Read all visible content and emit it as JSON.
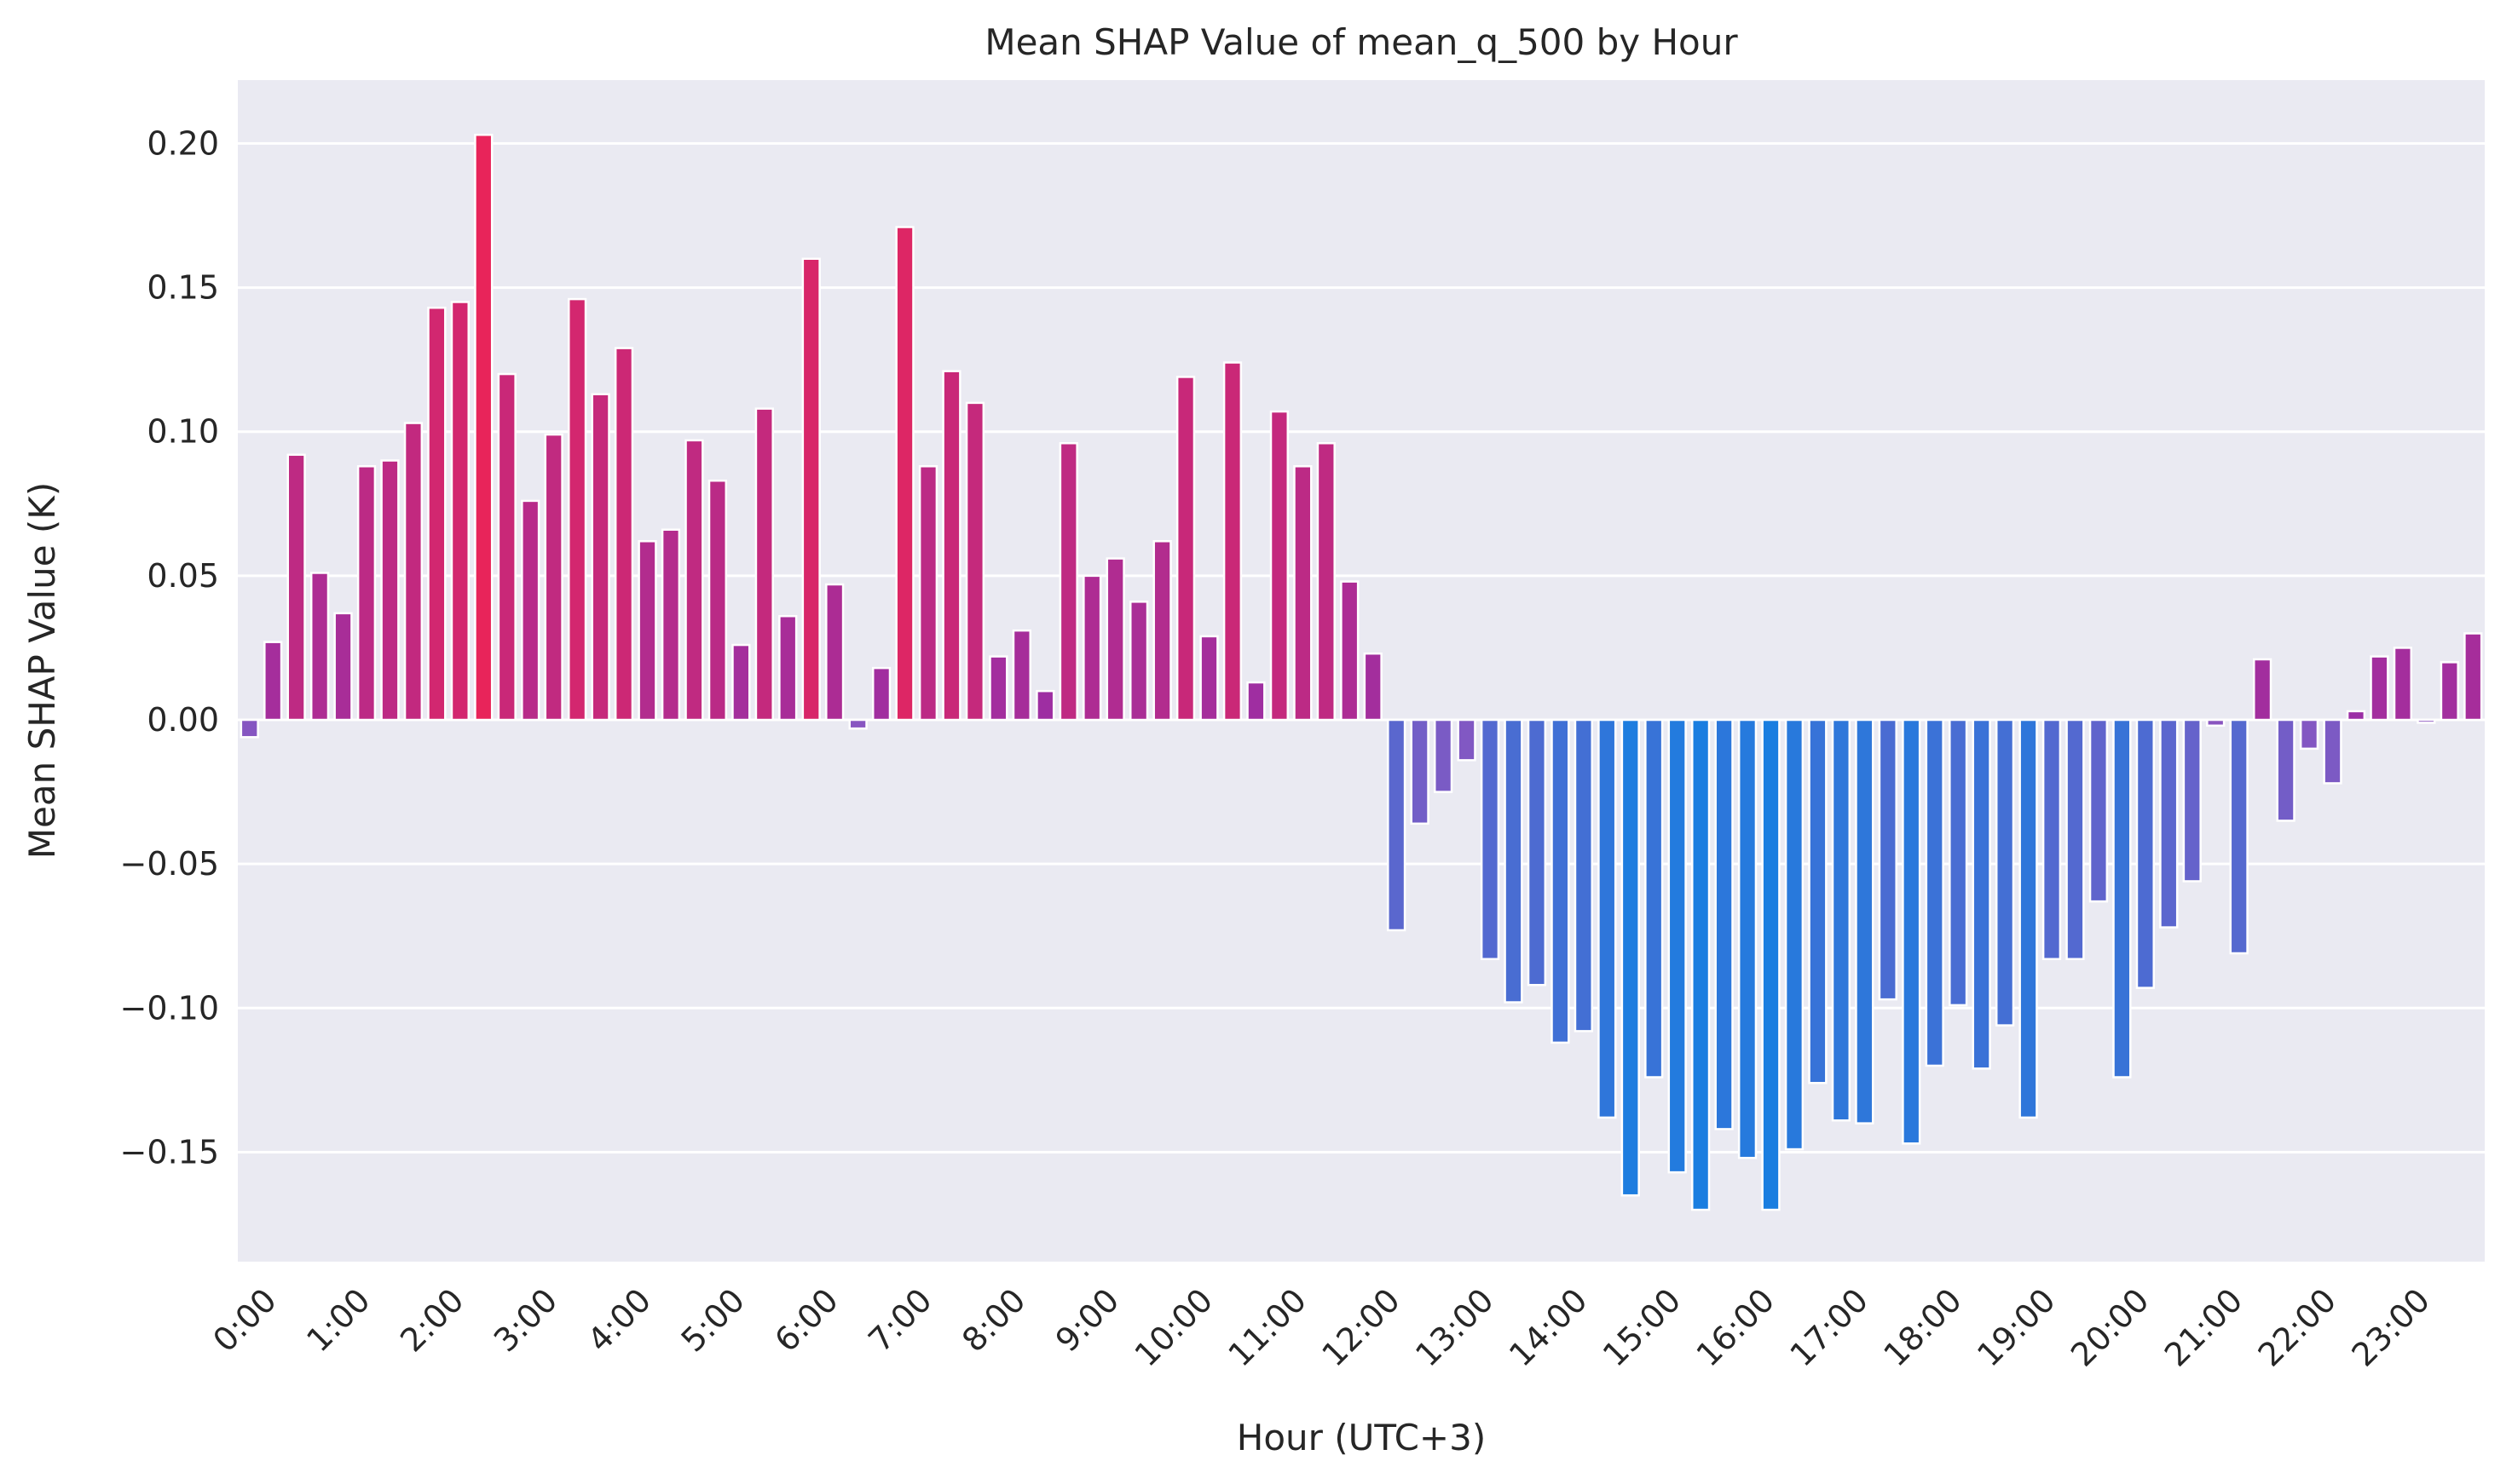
{
  "chart_data": {
    "type": "bar",
    "title": "Mean SHAP Value of mean_q_500 by Hour",
    "xlabel": "Hour (UTC+3)",
    "ylabel": "Mean SHAP Value (K)",
    "ylim": [
      -0.188,
      0.222
    ],
    "yticks": [
      0.2,
      0.15,
      0.1,
      0.05,
      0.0,
      -0.05,
      -0.1,
      -0.15
    ],
    "ytick_labels": [
      "0.20",
      "0.15",
      "0.10",
      "0.05",
      "0.00",
      "−0.05",
      "−0.10",
      "−0.15"
    ],
    "xtick_labels": [
      "0:00",
      "1:00",
      "2:00",
      "3:00",
      "4:00",
      "5:00",
      "6:00",
      "7:00",
      "8:00",
      "9:00",
      "10:00",
      "11:00",
      "12:00",
      "13:00",
      "14:00",
      "15:00",
      "16:00",
      "17:00",
      "18:00",
      "19:00",
      "20:00",
      "21:00",
      "22:00",
      "23:00"
    ],
    "bars_per_hour": 4,
    "grid": true,
    "colors": {
      "background": "#eaeaf2",
      "grid": "#ffffff",
      "positive_high": "#e8245a",
      "positive_low": "#9a2fa6",
      "negative_low": "#8a55c0",
      "negative_high": "#1a7ee0"
    },
    "values": [
      -0.006,
      0.027,
      0.092,
      0.051,
      0.037,
      0.088,
      0.09,
      0.103,
      0.143,
      0.145,
      0.203,
      0.12,
      0.076,
      0.099,
      0.146,
      0.113,
      0.129,
      0.062,
      0.066,
      0.097,
      0.083,
      0.026,
      0.108,
      0.036,
      0.16,
      0.047,
      -0.003,
      0.018,
      0.171,
      0.088,
      0.121,
      0.11,
      0.022,
      0.031,
      0.01,
      0.096,
      0.05,
      0.056,
      0.041,
      0.062,
      0.119,
      0.029,
      0.124,
      0.013,
      0.107,
      0.088,
      0.096,
      0.048,
      0.023,
      -0.073,
      -0.036,
      -0.025,
      -0.014,
      -0.083,
      -0.098,
      -0.092,
      -0.112,
      -0.108,
      -0.138,
      -0.165,
      -0.124,
      -0.157,
      -0.17,
      -0.142,
      -0.152,
      -0.17,
      -0.149,
      -0.126,
      -0.139,
      -0.14,
      -0.097,
      -0.147,
      -0.12,
      -0.099,
      -0.121,
      -0.106,
      -0.138,
      -0.083,
      -0.083,
      -0.063,
      -0.124,
      -0.093,
      -0.072,
      -0.056,
      -0.002,
      -0.081,
      0.021,
      -0.035,
      -0.01,
      -0.022,
      0.003,
      0.022,
      0.025,
      -0.001,
      0.02,
      0.03
    ]
  }
}
